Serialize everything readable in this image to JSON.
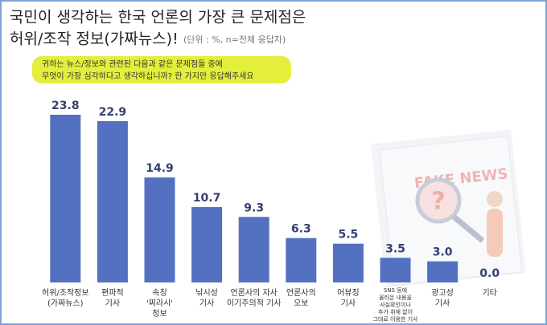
{
  "chart_data": {
    "type": "bar",
    "title": [
      "국민이 생각하는 한국 언론의 가장 큰 문제점은",
      "허위/조작 정보(가짜뉴스)!"
    ],
    "subtitle": "(단위 : %, n=전체 응답자)",
    "question": [
      "귀하는 뉴스/정보와 관련된 다음과 같은 문제점들 중에",
      "무엇이 가장 심각하다고 생각하십니까? 한 가지만 응답해주세요"
    ],
    "illustration_text": "FAKE NEWS",
    "categories": [
      [
        "허위/조작정보",
        "(가짜뉴스)"
      ],
      [
        "편파적",
        "기사"
      ],
      [
        "속칭",
        "'찌라시'",
        "정보"
      ],
      [
        "낚시성",
        "기사"
      ],
      [
        "언론사의 자사",
        "이기주의적 기사"
      ],
      [
        "언론사의",
        "오보"
      ],
      [
        "어뷰징",
        "기사"
      ],
      [
        "SNS 등에",
        "올라온 내용을",
        "사실확인이나",
        "추가 취재 없이",
        "그대로 이용한 기사"
      ],
      [
        "광고성",
        "기사"
      ],
      [
        "기타"
      ]
    ],
    "values": [
      23.8,
      22.9,
      14.9,
      10.7,
      9.3,
      6.3,
      5.5,
      3.5,
      3.0,
      0.0
    ],
    "value_labels": [
      "23.8",
      "22.9",
      "14.9",
      "10.7",
      "9.3",
      "6.3",
      "5.5",
      "3.5",
      "3.0",
      "0.0"
    ],
    "color": "#5470c0"
  }
}
